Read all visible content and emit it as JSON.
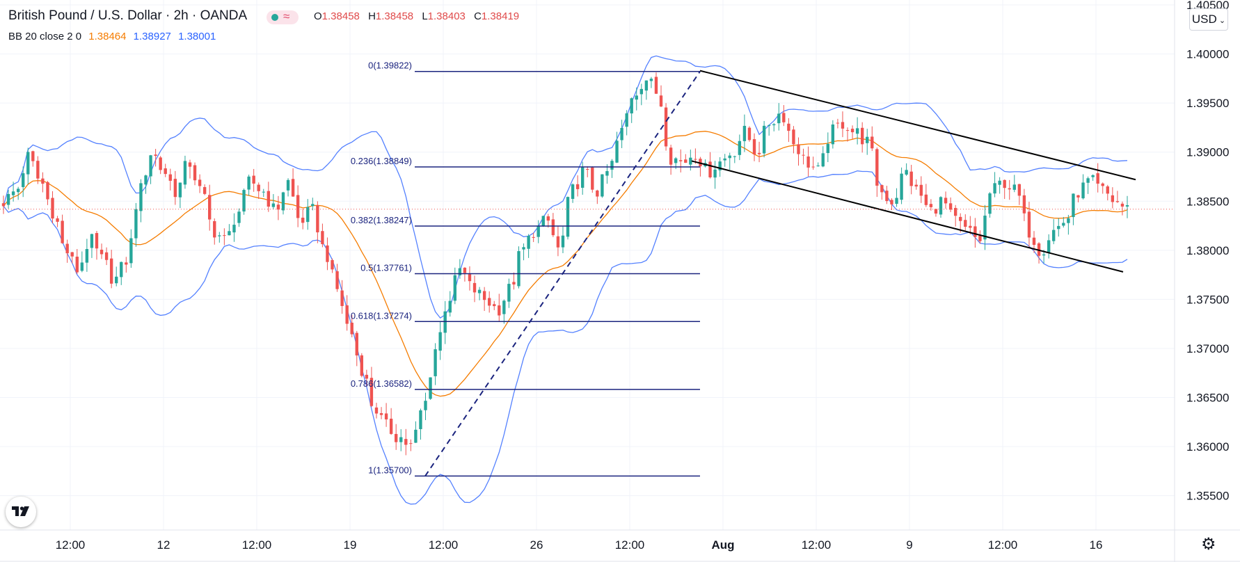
{
  "header": {
    "title": "British Pound / U.S. Dollar · 2h · OANDA",
    "ohlc": [
      {
        "label": "O",
        "value": "1.38458"
      },
      {
        "label": "H",
        "value": "1.38458"
      },
      {
        "label": "L",
        "value": "1.38403"
      },
      {
        "label": "C",
        "value": "1.38419"
      }
    ],
    "market_status_icon": "market-open-dot",
    "replay_icon": "approx-icon"
  },
  "indicator": {
    "label": "BB 20 close 2 0",
    "middle": "1.38464",
    "upper": "1.38927",
    "lower": "1.38001",
    "colors": {
      "basis": "#f57c00",
      "bands": "#2962ff"
    }
  },
  "currency_button": {
    "label": "USD"
  },
  "chart_data": {
    "type": "candlestick",
    "symbol": "GBPUSD",
    "timeframe": "2h",
    "ylim": [
      1.3515,
      1.4055
    ],
    "y_ticks": [
      "1.40500",
      "1.40000",
      "1.39500",
      "1.39000",
      "1.38500",
      "1.38000",
      "1.37500",
      "1.37000",
      "1.36500",
      "1.36000",
      "1.35500"
    ],
    "x_ticks": [
      "12:00",
      "12",
      "12:00",
      "19",
      "12:00",
      "26",
      "12:00",
      "Aug",
      "12:00",
      "9",
      "12:00",
      "16"
    ],
    "x_tick_bold": [
      false,
      false,
      false,
      false,
      false,
      false,
      false,
      true,
      false,
      false,
      false,
      false
    ],
    "last_price": 1.38419,
    "colors": {
      "up": "#26a69a",
      "down": "#ef5350",
      "basis": "#f57c00",
      "bands": "#2962ff",
      "fib": "#1a237e"
    },
    "fibonacci": [
      {
        "label": "0(1.39822)",
        "price": 1.39822
      },
      {
        "label": "0.236(1.38849)",
        "price": 1.38849
      },
      {
        "label": "0.382(1.38247)",
        "price": 1.38247
      },
      {
        "label": "0.5(1.37761)",
        "price": 1.37761
      },
      {
        "label": "0.618(1.37274)",
        "price": 1.37274
      },
      {
        "label": "0.786(1.36582)",
        "price": 1.36582
      },
      {
        "label": "1(1.35700)",
        "price": 1.357
      }
    ],
    "fib_trend": {
      "from_price": 1.357,
      "to_price": 1.39822
    },
    "channel": {
      "upper": [
        1.3983,
        1.3872
      ],
      "lower": [
        1.3891,
        1.3778
      ]
    },
    "anchors": [
      1.385,
      1.386,
      1.3895,
      1.387,
      1.384,
      1.38,
      1.378,
      1.381,
      1.379,
      1.377,
      1.379,
      1.386,
      1.39,
      1.388,
      1.386,
      1.389,
      1.386,
      1.382,
      1.381,
      1.384,
      1.387,
      1.386,
      1.384,
      1.387,
      1.383,
      1.384,
      1.38,
      1.376,
      1.372,
      1.368,
      1.364,
      1.362,
      1.361,
      1.36,
      1.364,
      1.37,
      1.375,
      1.378,
      1.376,
      1.375,
      1.374,
      1.376,
      1.38,
      1.382,
      1.383,
      1.38,
      1.386,
      1.388,
      1.386,
      1.388,
      1.392,
      1.396,
      1.3975,
      1.396,
      1.3895,
      1.389,
      1.39,
      1.388,
      1.389,
      1.39,
      1.392,
      1.39,
      1.393,
      1.394,
      1.391,
      1.389,
      1.388,
      1.392,
      1.393,
      1.392,
      1.391,
      1.386,
      1.385,
      1.388,
      1.386,
      1.384,
      1.385,
      1.383,
      1.382,
      1.381,
      1.386,
      1.387,
      1.386,
      1.382,
      1.38,
      1.382,
      1.383,
      1.386,
      1.387,
      1.386,
      1.385,
      1.3842
    ]
  }
}
